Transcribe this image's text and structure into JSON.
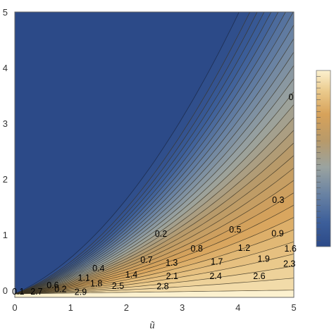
{
  "chart_data": {
    "type": "contour",
    "xlabel": "ũ",
    "ylabel": "",
    "xlim": [
      0,
      5
    ],
    "ylim": [
      0,
      5
    ],
    "x_ticks": [
      "0",
      "1",
      "2",
      "3",
      "4",
      "5"
    ],
    "y_ticks": [
      "0",
      "1",
      "2",
      "3",
      "4",
      "5"
    ],
    "colormap": [
      "#2c4a88",
      "#3d5f9a",
      "#6a83a3",
      "#9aa3a0",
      "#b89a6a",
      "#d7a25a",
      "#eac98b",
      "#fcf1cf"
    ],
    "contour_levels": [
      0,
      0.1,
      0.2,
      0.3,
      0.4,
      0.5,
      0.6,
      0.7,
      0.8,
      0.9,
      1.0,
      1.1,
      1.2,
      1.3,
      1.4,
      1.5,
      1.6,
      1.7,
      1.8,
      1.9,
      2.0,
      2.1,
      2.2,
      2.3,
      2.4,
      2.5,
      2.6,
      2.7,
      2.8,
      2.9
    ],
    "contour_labels": [
      {
        "text": "0",
        "x": 4.95,
        "y": 3.49
      },
      {
        "text": "0.3",
        "x": 4.72,
        "y": 1.66
      },
      {
        "text": "0.2",
        "x": 2.62,
        "y": 1.06
      },
      {
        "text": "0.5",
        "x": 3.95,
        "y": 1.14
      },
      {
        "text": "0.9",
        "x": 4.71,
        "y": 1.07
      },
      {
        "text": "0.7",
        "x": 2.36,
        "y": 0.6
      },
      {
        "text": "0.8",
        "x": 3.26,
        "y": 0.8
      },
      {
        "text": "1.2",
        "x": 4.11,
        "y": 0.81
      },
      {
        "text": "1.6",
        "x": 4.94,
        "y": 0.8
      },
      {
        "text": "0.4",
        "x": 1.5,
        "y": 0.45
      },
      {
        "text": "1.3",
        "x": 2.81,
        "y": 0.55
      },
      {
        "text": "1.7",
        "x": 3.62,
        "y": 0.57
      },
      {
        "text": "1.9",
        "x": 4.46,
        "y": 0.62
      },
      {
        "text": "2.3",
        "x": 4.92,
        "y": 0.53
      },
      {
        "text": "1.1",
        "x": 1.24,
        "y": 0.28
      },
      {
        "text": "1.4",
        "x": 2.09,
        "y": 0.34
      },
      {
        "text": "2.1",
        "x": 2.82,
        "y": 0.31
      },
      {
        "text": "2.4",
        "x": 3.6,
        "y": 0.31
      },
      {
        "text": "2.6",
        "x": 4.38,
        "y": 0.31
      },
      {
        "text": "0.6",
        "x": 0.68,
        "y": 0.15
      },
      {
        "text": "1.8",
        "x": 1.46,
        "y": 0.18
      },
      {
        "text": "2.5",
        "x": 1.85,
        "y": 0.14
      },
      {
        "text": "2.8",
        "x": 2.65,
        "y": 0.13
      },
      {
        "text": "0.2",
        "x": 0.82,
        "y": 0.08
      },
      {
        "text": "2.9",
        "x": 1.18,
        "y": 0.03
      },
      {
        "text": "0.1",
        "x": 0.06,
        "y": 0.04
      },
      {
        "text": "2.7",
        "x": 0.39,
        "y": 0.04
      }
    ]
  }
}
